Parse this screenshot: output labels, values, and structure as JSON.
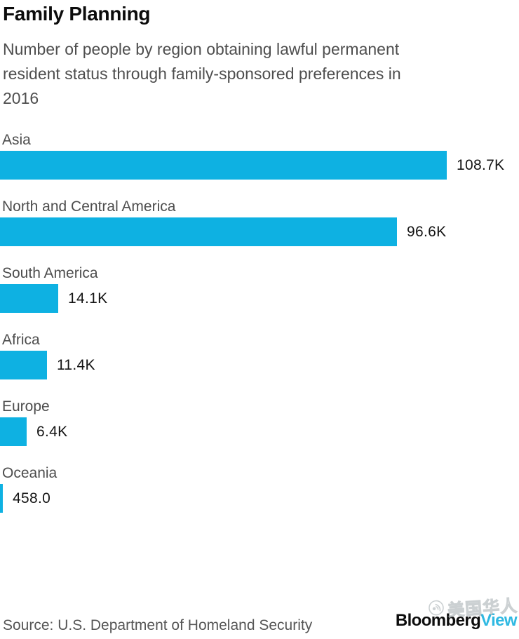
{
  "header": {
    "title": "Family Planning",
    "subtitle_lines": [
      "Number of people by region obtaining lawful permanent",
      "resident status through family-sponsored preferences in",
      "2016"
    ]
  },
  "chart_data": {
    "type": "bar",
    "orientation": "horizontal",
    "title": "Family Planning",
    "subtitle": "Number of people by region obtaining lawful permanent resident status through family-sponsored preferences in 2016",
    "categories": [
      "Asia",
      "North and Central America",
      "South America",
      "Africa",
      "Europe",
      "Oceania"
    ],
    "values": [
      108700,
      96600,
      14100,
      11400,
      6400,
      458
    ],
    "value_labels": [
      "108.7K",
      "96.6K",
      "14.1K",
      "11.4K",
      "6.4K",
      "458.0"
    ],
    "xlabel": "",
    "ylabel": "",
    "xlim": [
      0,
      113000
    ],
    "grid": false,
    "legend": false,
    "bar_color": "#0eb1e2",
    "label_color": "#4d4d4d",
    "value_color": "#141414"
  },
  "footer": {
    "source": "Source: U.S. Department of Homeland Security",
    "logo": {
      "bloomberg": "Bloomberg",
      "view": "View",
      "view_color": "#2fb9e2"
    }
  },
  "watermark": {
    "text": "美国华人",
    "icon": "globe-signal-icon"
  }
}
